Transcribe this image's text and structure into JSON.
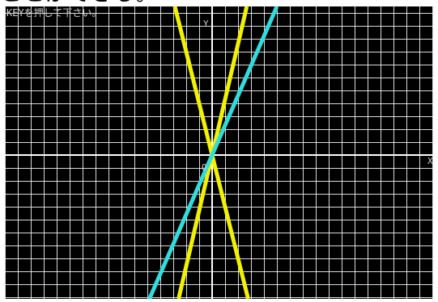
{
  "caption_fragment": "ことができる。",
  "screen": {
    "prompt": "KEYを押して下さい。",
    "axis_y_label": "Y",
    "axis_x_label": "X",
    "origin_label": "O"
  },
  "colors": {
    "background": "#000000",
    "grid": "#ffffff",
    "axes": "#ffffff",
    "yellow_lines": "#f2f200",
    "cyan_line": "#33dcdc"
  },
  "chart_data": {
    "type": "line",
    "grid": true,
    "series": [
      {
        "color": "#f2f200",
        "slope": -4.0
      },
      {
        "color": "#f2f200",
        "slope": 4.3
      },
      {
        "color": "#33dcdc",
        "slope": 2.3
      }
    ]
  }
}
